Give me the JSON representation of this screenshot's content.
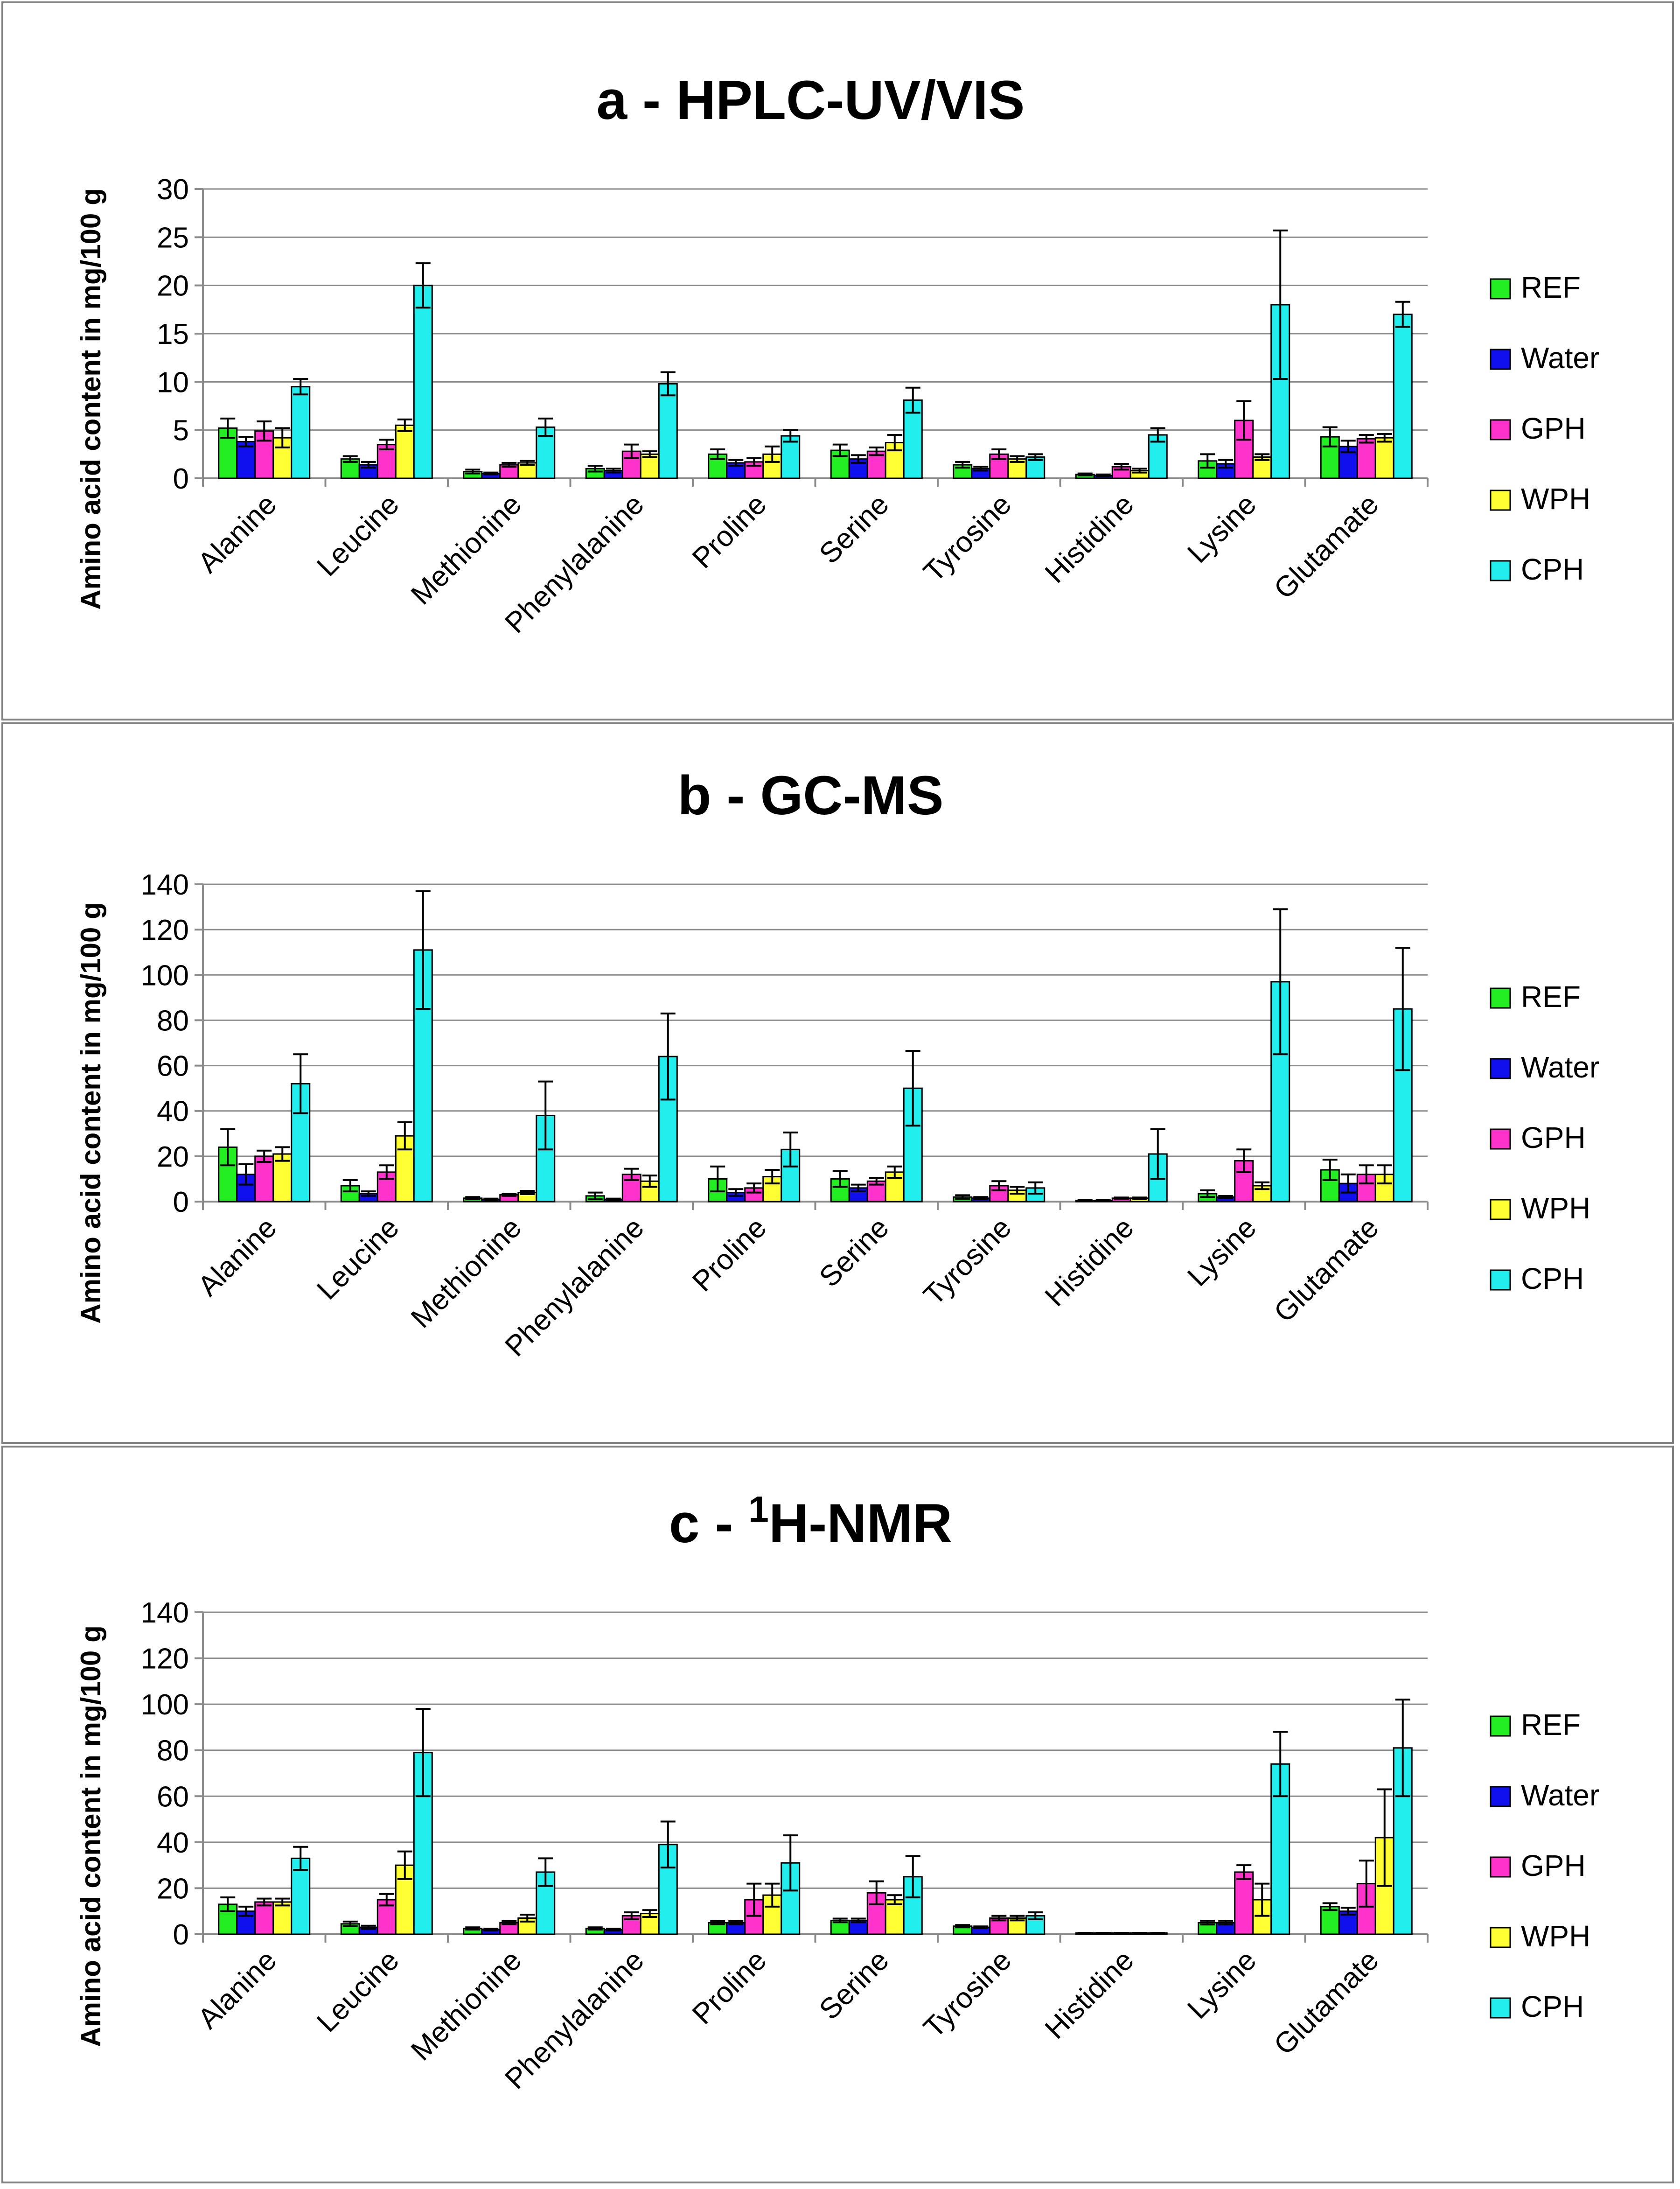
{
  "colors": {
    "REF": "#22ee22",
    "Water": "#1010ee",
    "GPH": "#ff33cc",
    "WPH": "#ffff33",
    "CPH": "#22eeee"
  },
  "chart_data": [
    {
      "type": "bar",
      "title": "a - HPLC-UV/VIS",
      "title_prefix": "a - ",
      "title_sup": "",
      "title_main": "HPLC-UV/VIS",
      "ylabel": "Amino acid content in mg/100 g",
      "ylim": [
        0,
        30
      ],
      "yticks": [
        0,
        5,
        10,
        15,
        20,
        25,
        30
      ],
      "grid": true,
      "legend_position": "right",
      "categories": [
        "Alanine",
        "Leucine",
        "Methionine",
        "Phenylalanine",
        "Proline",
        "Serine",
        "Tyrosine",
        "Histidine",
        "Lysine",
        "Glutamate"
      ],
      "series": [
        {
          "name": "REF",
          "values": [
            5.2,
            2.0,
            0.7,
            1.0,
            2.5,
            2.9,
            1.4,
            0.4,
            1.8,
            4.3
          ],
          "errors": [
            1.0,
            0.3,
            0.2,
            0.3,
            0.5,
            0.6,
            0.3,
            0.1,
            0.7,
            1.0
          ]
        },
        {
          "name": "Water",
          "values": [
            3.8,
            1.4,
            0.5,
            0.8,
            1.6,
            2.0,
            1.0,
            0.3,
            1.5,
            3.3
          ],
          "errors": [
            0.5,
            0.3,
            0.1,
            0.2,
            0.3,
            0.4,
            0.2,
            0.1,
            0.4,
            0.6
          ]
        },
        {
          "name": "GPH",
          "values": [
            4.9,
            3.5,
            1.4,
            2.8,
            1.7,
            2.8,
            2.5,
            1.2,
            6.0,
            4.1
          ],
          "errors": [
            1.0,
            0.5,
            0.2,
            0.7,
            0.4,
            0.4,
            0.5,
            0.3,
            2.0,
            0.4
          ]
        },
        {
          "name": "WPH",
          "values": [
            4.2,
            5.5,
            1.6,
            2.5,
            2.5,
            3.7,
            2.0,
            0.8,
            2.2,
            4.2
          ],
          "errors": [
            1.0,
            0.6,
            0.2,
            0.3,
            0.8,
            0.8,
            0.3,
            0.2,
            0.3,
            0.4
          ]
        },
        {
          "name": "CPH",
          "values": [
            9.5,
            20.0,
            5.3,
            9.8,
            4.4,
            8.1,
            2.2,
            4.5,
            18.0,
            17.0
          ],
          "errors": [
            0.8,
            2.3,
            0.9,
            1.2,
            0.6,
            1.3,
            0.3,
            0.7,
            7.7,
            1.3
          ]
        }
      ]
    },
    {
      "type": "bar",
      "title": "b - GC-MS",
      "title_prefix": "b - ",
      "title_sup": "",
      "title_main": "GC-MS",
      "ylabel": "Amino acid content in mg/100 g",
      "ylim": [
        0,
        140
      ],
      "yticks": [
        0,
        20,
        40,
        60,
        80,
        100,
        120,
        140
      ],
      "grid": true,
      "legend_position": "right",
      "categories": [
        "Alanine",
        "Leucine",
        "Methionine",
        "Phenylalanine",
        "Proline",
        "Serine",
        "Tyrosine",
        "Histidine",
        "Lysine",
        "Glutamate"
      ],
      "series": [
        {
          "name": "REF",
          "values": [
            24,
            7,
            1.5,
            2.5,
            10,
            10,
            2,
            0.5,
            3.5,
            14
          ],
          "errors": [
            8,
            2.5,
            0.5,
            1.5,
            5.5,
            3.5,
            0.8,
            0.2,
            1.5,
            4.5
          ]
        },
        {
          "name": "Water",
          "values": [
            12,
            3.5,
            1,
            1,
            4,
            6,
            1.5,
            0.5,
            2,
            8
          ],
          "errors": [
            4.5,
            1,
            0.3,
            0.3,
            1.5,
            1.5,
            0.5,
            0.2,
            0.5,
            4
          ]
        },
        {
          "name": "GPH",
          "values": [
            20,
            13,
            3,
            12,
            6,
            9,
            7,
            1.5,
            18,
            12
          ],
          "errors": [
            2.5,
            3,
            0.5,
            2.5,
            2,
            1.5,
            2,
            0.3,
            5,
            4
          ]
        },
        {
          "name": "WPH",
          "values": [
            21,
            29,
            4,
            9,
            11,
            13,
            5,
            1.5,
            7,
            12
          ],
          "errors": [
            3,
            6,
            0.7,
            2.5,
            3,
            2.5,
            1.5,
            0.3,
            1.5,
            4
          ]
        },
        {
          "name": "CPH",
          "values": [
            52,
            111,
            38,
            64,
            23,
            50,
            6,
            21,
            97,
            85
          ],
          "errors": [
            13,
            26,
            15,
            19,
            7.5,
            16.5,
            2.5,
            11,
            32,
            27
          ]
        }
      ]
    },
    {
      "type": "bar",
      "title": "c - 1H-NMR",
      "title_prefix": "c - ",
      "title_sup": "1",
      "title_main": "H-NMR",
      "ylabel": "Amino acid content in mg/100 g",
      "ylim": [
        0,
        140
      ],
      "yticks": [
        0,
        20,
        40,
        60,
        80,
        100,
        120,
        140
      ],
      "grid": true,
      "legend_position": "right",
      "categories": [
        "Alanine",
        "Leucine",
        "Methionine",
        "Phenylalanine",
        "Proline",
        "Serine",
        "Tyrosine",
        "Histidine",
        "Lysine",
        "Glutamate"
      ],
      "series": [
        {
          "name": "REF",
          "values": [
            13,
            4.5,
            2.5,
            2.5,
            5,
            6,
            3.5,
            0.5,
            5,
            12
          ],
          "errors": [
            3,
            1,
            0.5,
            0.5,
            0.7,
            0.8,
            0.5,
            0.1,
            0.8,
            1.5
          ]
        },
        {
          "name": "Water",
          "values": [
            10,
            3,
            2,
            2,
            5,
            6,
            3,
            0.5,
            5,
            10
          ],
          "errors": [
            2,
            0.7,
            0.4,
            0.4,
            0.7,
            0.8,
            0.4,
            0.1,
            0.8,
            1.5
          ]
        },
        {
          "name": "GPH",
          "values": [
            14,
            15,
            5,
            8,
            15,
            18,
            7,
            0.5,
            27,
            22
          ],
          "errors": [
            1.5,
            2.5,
            0.7,
            1.5,
            7,
            5,
            1,
            0.1,
            3,
            10
          ]
        },
        {
          "name": "WPH",
          "values": [
            14,
            30,
            7,
            9,
            17,
            15,
            7,
            0.5,
            15,
            42
          ],
          "errors": [
            1.5,
            6,
            1.5,
            1.5,
            5,
            2,
            1,
            0.1,
            7,
            21
          ]
        },
        {
          "name": "CPH",
          "values": [
            33,
            79,
            27,
            39,
            31,
            25,
            8,
            0.5,
            74,
            81
          ],
          "errors": [
            5,
            19,
            6,
            10,
            12,
            9,
            1.5,
            0.1,
            14,
            21
          ]
        }
      ]
    }
  ]
}
